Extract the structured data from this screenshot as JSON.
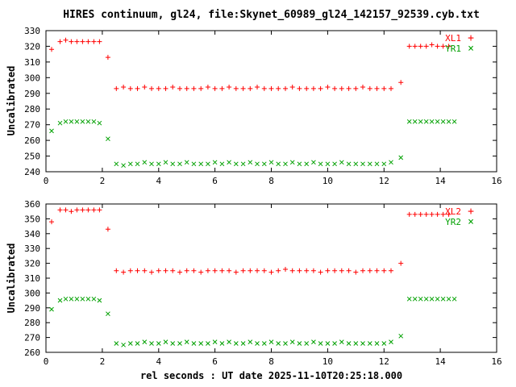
{
  "title": "HIRES continuum, gl24, file:Skynet_60989_gl24_142157_92539.cyb.txt",
  "xlabel": "rel seconds : UT date 2025-11-10T20:25:18.000",
  "colors": {
    "red": "#ff0000",
    "green": "#00a000",
    "frame": "#000000",
    "background": "#ffffff"
  },
  "chart_data": [
    {
      "type": "scatter",
      "ylabel": "Uncalibrated",
      "xlim": [
        0,
        16
      ],
      "ylim": [
        240,
        330
      ],
      "xticks": [
        0,
        2,
        4,
        6,
        8,
        10,
        12,
        14,
        16
      ],
      "yticks": [
        240,
        250,
        260,
        270,
        280,
        290,
        300,
        310,
        320,
        330
      ],
      "grid": false,
      "legend_position": "top-right-inside",
      "series": [
        {
          "name": "XL1",
          "marker": "plus",
          "color": "#ff0000",
          "points": [
            [
              0.2,
              318
            ],
            [
              0.5,
              323
            ],
            [
              0.7,
              324
            ],
            [
              0.9,
              323
            ],
            [
              1.1,
              323
            ],
            [
              1.3,
              323
            ],
            [
              1.5,
              323
            ],
            [
              1.7,
              323
            ],
            [
              1.9,
              323
            ],
            [
              2.2,
              313
            ],
            [
              2.5,
              293
            ],
            [
              2.75,
              294
            ],
            [
              3,
              293
            ],
            [
              3.25,
              293
            ],
            [
              3.5,
              294
            ],
            [
              3.75,
              293
            ],
            [
              4,
              293
            ],
            [
              4.25,
              293
            ],
            [
              4.5,
              294
            ],
            [
              4.75,
              293
            ],
            [
              5,
              293
            ],
            [
              5.25,
              293
            ],
            [
              5.5,
              293
            ],
            [
              5.75,
              294
            ],
            [
              6,
              293
            ],
            [
              6.25,
              293
            ],
            [
              6.5,
              294
            ],
            [
              6.75,
              293
            ],
            [
              7,
              293
            ],
            [
              7.25,
              293
            ],
            [
              7.5,
              294
            ],
            [
              7.75,
              293
            ],
            [
              8,
              293
            ],
            [
              8.25,
              293
            ],
            [
              8.5,
              293
            ],
            [
              8.75,
              294
            ],
            [
              9,
              293
            ],
            [
              9.25,
              293
            ],
            [
              9.5,
              293
            ],
            [
              9.75,
              293
            ],
            [
              10,
              294
            ],
            [
              10.25,
              293
            ],
            [
              10.5,
              293
            ],
            [
              10.75,
              293
            ],
            [
              11,
              293
            ],
            [
              11.25,
              294
            ],
            [
              11.5,
              293
            ],
            [
              11.75,
              293
            ],
            [
              12,
              293
            ],
            [
              12.25,
              293
            ],
            [
              12.6,
              297
            ],
            [
              12.9,
              320
            ],
            [
              13.1,
              320
            ],
            [
              13.3,
              320
            ],
            [
              13.5,
              320
            ],
            [
              13.7,
              321
            ],
            [
              13.9,
              320
            ],
            [
              14.1,
              320
            ],
            [
              14.3,
              320
            ]
          ]
        },
        {
          "name": "YR1",
          "marker": "cross",
          "color": "#00a000",
          "points": [
            [
              0.2,
              266
            ],
            [
              0.5,
              271
            ],
            [
              0.7,
              272
            ],
            [
              0.9,
              272
            ],
            [
              1.1,
              272
            ],
            [
              1.3,
              272
            ],
            [
              1.5,
              272
            ],
            [
              1.7,
              272
            ],
            [
              1.9,
              271
            ],
            [
              2.2,
              261
            ],
            [
              2.5,
              245
            ],
            [
              2.75,
              244
            ],
            [
              3,
              245
            ],
            [
              3.25,
              245
            ],
            [
              3.5,
              246
            ],
            [
              3.75,
              245
            ],
            [
              4,
              245
            ],
            [
              4.25,
              246
            ],
            [
              4.5,
              245
            ],
            [
              4.75,
              245
            ],
            [
              5,
              246
            ],
            [
              5.25,
              245
            ],
            [
              5.5,
              245
            ],
            [
              5.75,
              245
            ],
            [
              6,
              246
            ],
            [
              6.25,
              245
            ],
            [
              6.5,
              246
            ],
            [
              6.75,
              245
            ],
            [
              7,
              245
            ],
            [
              7.25,
              246
            ],
            [
              7.5,
              245
            ],
            [
              7.75,
              245
            ],
            [
              8,
              246
            ],
            [
              8.25,
              245
            ],
            [
              8.5,
              245
            ],
            [
              8.75,
              246
            ],
            [
              9,
              245
            ],
            [
              9.25,
              245
            ],
            [
              9.5,
              246
            ],
            [
              9.75,
              245
            ],
            [
              10,
              245
            ],
            [
              10.25,
              245
            ],
            [
              10.5,
              246
            ],
            [
              10.75,
              245
            ],
            [
              11,
              245
            ],
            [
              11.25,
              245
            ],
            [
              11.5,
              245
            ],
            [
              11.75,
              245
            ],
            [
              12,
              245
            ],
            [
              12.25,
              246
            ],
            [
              12.6,
              249
            ],
            [
              12.9,
              272
            ],
            [
              13.1,
              272
            ],
            [
              13.3,
              272
            ],
            [
              13.5,
              272
            ],
            [
              13.7,
              272
            ],
            [
              13.9,
              272
            ],
            [
              14.1,
              272
            ],
            [
              14.3,
              272
            ],
            [
              14.5,
              272
            ]
          ]
        }
      ]
    },
    {
      "type": "scatter",
      "ylabel": "Uncalibrated",
      "xlim": [
        0,
        16
      ],
      "ylim": [
        260,
        360
      ],
      "xticks": [
        0,
        2,
        4,
        6,
        8,
        10,
        12,
        14,
        16
      ],
      "yticks": [
        260,
        270,
        280,
        290,
        300,
        310,
        320,
        330,
        340,
        350,
        360
      ],
      "grid": false,
      "legend_position": "top-right-inside",
      "series": [
        {
          "name": "XL2",
          "marker": "plus",
          "color": "#ff0000",
          "points": [
            [
              0.2,
              348
            ],
            [
              0.5,
              356
            ],
            [
              0.7,
              356
            ],
            [
              0.9,
              355
            ],
            [
              1.1,
              356
            ],
            [
              1.3,
              356
            ],
            [
              1.5,
              356
            ],
            [
              1.7,
              356
            ],
            [
              1.9,
              356
            ],
            [
              2.2,
              343
            ],
            [
              2.5,
              315
            ],
            [
              2.75,
              314
            ],
            [
              3,
              315
            ],
            [
              3.25,
              315
            ],
            [
              3.5,
              315
            ],
            [
              3.75,
              314
            ],
            [
              4,
              315
            ],
            [
              4.25,
              315
            ],
            [
              4.5,
              315
            ],
            [
              4.75,
              314
            ],
            [
              5,
              315
            ],
            [
              5.25,
              315
            ],
            [
              5.5,
              314
            ],
            [
              5.75,
              315
            ],
            [
              6,
              315
            ],
            [
              6.25,
              315
            ],
            [
              6.5,
              315
            ],
            [
              6.75,
              314
            ],
            [
              7,
              315
            ],
            [
              7.25,
              315
            ],
            [
              7.5,
              315
            ],
            [
              7.75,
              315
            ],
            [
              8,
              314
            ],
            [
              8.25,
              315
            ],
            [
              8.5,
              316
            ],
            [
              8.75,
              315
            ],
            [
              9,
              315
            ],
            [
              9.25,
              315
            ],
            [
              9.5,
              315
            ],
            [
              9.75,
              314
            ],
            [
              10,
              315
            ],
            [
              10.25,
              315
            ],
            [
              10.5,
              315
            ],
            [
              10.75,
              315
            ],
            [
              11,
              314
            ],
            [
              11.25,
              315
            ],
            [
              11.5,
              315
            ],
            [
              11.75,
              315
            ],
            [
              12,
              315
            ],
            [
              12.25,
              315
            ],
            [
              12.6,
              320
            ],
            [
              12.9,
              353
            ],
            [
              13.1,
              353
            ],
            [
              13.3,
              353
            ],
            [
              13.5,
              353
            ],
            [
              13.7,
              353
            ],
            [
              13.9,
              353
            ],
            [
              14.1,
              353
            ],
            [
              14.3,
              353
            ]
          ]
        },
        {
          "name": "YR2",
          "marker": "cross",
          "color": "#00a000",
          "points": [
            [
              0.2,
              289
            ],
            [
              0.5,
              295
            ],
            [
              0.7,
              296
            ],
            [
              0.9,
              296
            ],
            [
              1.1,
              296
            ],
            [
              1.3,
              296
            ],
            [
              1.5,
              296
            ],
            [
              1.7,
              296
            ],
            [
              1.9,
              295
            ],
            [
              2.2,
              286
            ],
            [
              2.5,
              266
            ],
            [
              2.75,
              265
            ],
            [
              3,
              266
            ],
            [
              3.25,
              266
            ],
            [
              3.5,
              267
            ],
            [
              3.75,
              266
            ],
            [
              4,
              266
            ],
            [
              4.25,
              267
            ],
            [
              4.5,
              266
            ],
            [
              4.75,
              266
            ],
            [
              5,
              267
            ],
            [
              5.25,
              266
            ],
            [
              5.5,
              266
            ],
            [
              5.75,
              266
            ],
            [
              6,
              267
            ],
            [
              6.25,
              266
            ],
            [
              6.5,
              267
            ],
            [
              6.75,
              266
            ],
            [
              7,
              266
            ],
            [
              7.25,
              267
            ],
            [
              7.5,
              266
            ],
            [
              7.75,
              266
            ],
            [
              8,
              267
            ],
            [
              8.25,
              266
            ],
            [
              8.5,
              266
            ],
            [
              8.75,
              267
            ],
            [
              9,
              266
            ],
            [
              9.25,
              266
            ],
            [
              9.5,
              267
            ],
            [
              9.75,
              266
            ],
            [
              10,
              266
            ],
            [
              10.25,
              266
            ],
            [
              10.5,
              267
            ],
            [
              10.75,
              266
            ],
            [
              11,
              266
            ],
            [
              11.25,
              266
            ],
            [
              11.5,
              266
            ],
            [
              11.75,
              266
            ],
            [
              12,
              266
            ],
            [
              12.25,
              267
            ],
            [
              12.6,
              271
            ],
            [
              12.9,
              296
            ],
            [
              13.1,
              296
            ],
            [
              13.3,
              296
            ],
            [
              13.5,
              296
            ],
            [
              13.7,
              296
            ],
            [
              13.9,
              296
            ],
            [
              14.1,
              296
            ],
            [
              14.3,
              296
            ],
            [
              14.5,
              296
            ]
          ]
        }
      ]
    }
  ]
}
